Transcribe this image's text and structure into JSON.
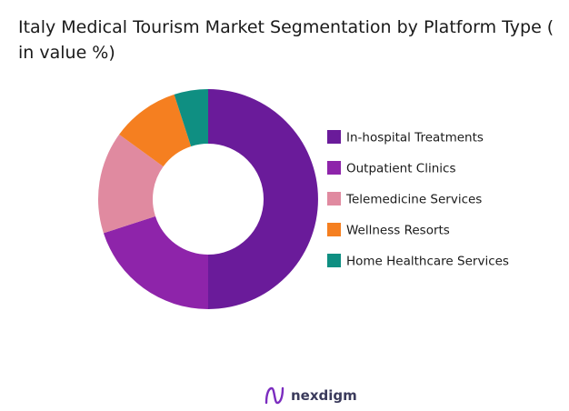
{
  "title": "Italy Medical Tourism Market Segmentation by Platform Type ( in value %)",
  "brand": {
    "name": "nexdigm",
    "colors": [
      "#7b2cbf",
      "#2d3e8f"
    ]
  },
  "chart_data": {
    "type": "pie",
    "donut": true,
    "legend_position": "right",
    "categories": [
      "In-hospital Treatments",
      "Outpatient Clinics",
      "Telemedicine Services",
      "Wellness Resorts",
      "Home Healthcare Services"
    ],
    "values": [
      50,
      20,
      15,
      10,
      5
    ],
    "colors": [
      "#6a1b9a",
      "#8e24aa",
      "#e08aa0",
      "#f57f20",
      "#0f8f82"
    ]
  }
}
